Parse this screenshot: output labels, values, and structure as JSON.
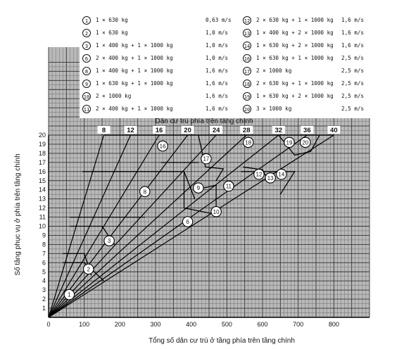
{
  "chart_data": {
    "type": "line",
    "xlabel": "Tổng số dân cư trú ở tầng phía trên tầng chính",
    "ylabel": "Số tầng phục vụ ở phía trên tầng chính",
    "top_axis_label": "Dân cư trú phía trên tầng chính",
    "xlim": [
      0,
      900
    ],
    "ylim": [
      0,
      20
    ],
    "x_ticks": [
      "0",
      "100",
      "200",
      "300",
      "400",
      "500",
      "600",
      "700",
      "800"
    ],
    "y_ticks": [
      "1",
      "2",
      "3",
      "4",
      "5",
      "6",
      "7",
      "8",
      "9",
      "10",
      "11",
      "12",
      "13",
      "14",
      "15",
      "16",
      "17",
      "18",
      "19",
      "20"
    ],
    "grid": true,
    "legend_placement": "top-center",
    "legend": [
      {
        "id": "1",
        "desc": "1 × 630 kg",
        "speed": "0,63 m/s"
      },
      {
        "id": "2",
        "desc": "1 × 630 kg",
        "speed": "1,0 m/s"
      },
      {
        "id": "3",
        "desc": "1 × 400 kg + 1 × 1000 kg",
        "speed": "1,0 m/s"
      },
      {
        "id": "6",
        "desc": "2 × 400 kg + 1 × 1000 kg",
        "speed": "1,0 m/s"
      },
      {
        "id": "8",
        "desc": "1 × 400 kg + 1 × 1000 kg",
        "speed": "1,6 m/s"
      },
      {
        "id": "9",
        "desc": "1 × 630 kg + 1 × 1000 kg",
        "speed": "1,6 m/s"
      },
      {
        "id": "10",
        "desc": "2 × 1000 kg",
        "speed": "1,6 m/s"
      },
      {
        "id": "11",
        "desc": "2 × 400 kg + 1 × 1000 kg",
        "speed": "1,6 m/s"
      },
      {
        "id": "12",
        "desc": "2 × 630 kg + 1 × 1000 kg",
        "speed": "1,6 m/s"
      },
      {
        "id": "13",
        "desc": "1 × 400 kg + 2 × 1000 kg",
        "speed": "1,6 m/s"
      },
      {
        "id": "14",
        "desc": "1 × 630 kg + 2 × 1000 kg",
        "speed": "1,6 m/s"
      },
      {
        "id": "16",
        "desc": "1 × 630 kg + 1 × 1000 kg",
        "speed": "2,5 m/s"
      },
      {
        "id": "17",
        "desc": "2 × 1000 kg",
        "speed": "2,5 m/s"
      },
      {
        "id": "18",
        "desc": "2 × 630 kg + 1 × 1000 kg",
        "speed": "2,5 m/s"
      },
      {
        "id": "19",
        "desc": "1 × 630 kg + 2 × 1000 kg",
        "speed": "2,5 m/s"
      },
      {
        "id": "20",
        "desc": "3 × 1000 kg",
        "speed": "2,5 m/s"
      }
    ],
    "zone_labels": [
      "8",
      "12",
      "16",
      "20",
      "24",
      "28",
      "32",
      "36",
      "40"
    ],
    "zone_lines": [
      {
        "label": "8",
        "top": [
          155,
          20
        ]
      },
      {
        "label": "12",
        "top": [
          230,
          20
        ]
      },
      {
        "label": "16",
        "top": [
          310,
          20
        ]
      },
      {
        "label": "20",
        "top": [
          390,
          20
        ]
      },
      {
        "label": "24",
        "top": [
          470,
          20
        ]
      },
      {
        "label": "28",
        "top": [
          555,
          20
        ]
      },
      {
        "label": "32",
        "top": [
          645,
          20
        ]
      },
      {
        "label": "36",
        "top": [
          725,
          20
        ]
      },
      {
        "label": "40",
        "top": [
          800,
          20
        ]
      }
    ],
    "region_markers": [
      {
        "id": "1",
        "x": 58,
        "y": 2.5
      },
      {
        "id": "2",
        "x": 112,
        "y": 5.3
      },
      {
        "id": "3",
        "x": 170,
        "y": 8.4
      },
      {
        "id": "6",
        "x": 390,
        "y": 10.5
      },
      {
        "id": "8",
        "x": 270,
        "y": 13.8
      },
      {
        "id": "9",
        "x": 420,
        "y": 14.2
      },
      {
        "id": "10",
        "x": 470,
        "y": 11.6
      },
      {
        "id": "11",
        "x": 505,
        "y": 14.4
      },
      {
        "id": "12",
        "x": 590,
        "y": 15.7
      },
      {
        "id": "13",
        "x": 622,
        "y": 15.3
      },
      {
        "id": "14",
        "x": 653,
        "y": 15.7
      },
      {
        "id": "16",
        "x": 320,
        "y": 18.8
      },
      {
        "id": "17",
        "x": 442,
        "y": 17.4
      },
      {
        "id": "18",
        "x": 560,
        "y": 19.2
      },
      {
        "id": "19",
        "x": 675,
        "y": 19.2
      },
      {
        "id": "20",
        "x": 720,
        "y": 19.2
      }
    ]
  }
}
